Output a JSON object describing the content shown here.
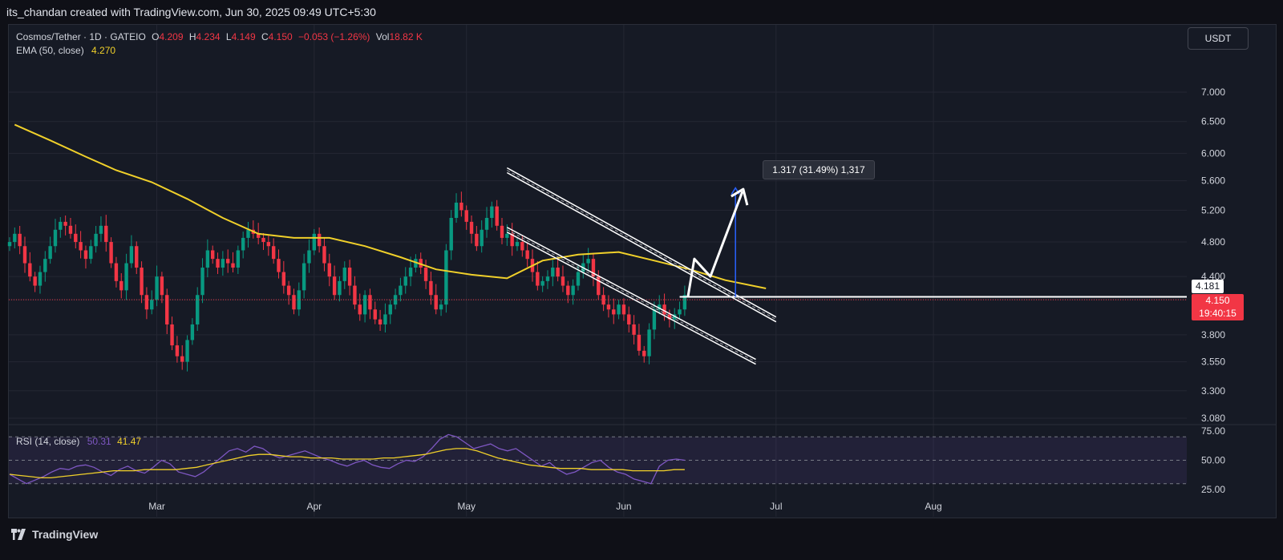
{
  "header": {
    "attribution": "its_chandan created with TradingView.com, Jun 30, 2025 09:49 UTC+5:30"
  },
  "legend": {
    "symbol": "Cosmos/Tether · 1D · GATEIO",
    "o_label": "O",
    "o_value": "4.209",
    "h_label": "H",
    "h_value": "4.234",
    "l_label": "L",
    "l_value": "4.149",
    "c_label": "C",
    "c_value": "4.150",
    "change": "−0.053 (−1.26%)",
    "vol_label": "Vol",
    "vol_value": "18.82 K",
    "ema_label": "EMA (50, close)",
    "ema_value": "4.270"
  },
  "currency": "USDT",
  "price_tags": {
    "ema_tag": "4.181",
    "last_price": "4.150",
    "countdown": "19:40:15"
  },
  "measure": {
    "label": "1.317 (31.49%) 1,317"
  },
  "rsi_legend": {
    "label": "RSI (14, close)",
    "value1": "50.31",
    "value2": "41.47"
  },
  "footer": {
    "brand": "TradingView"
  },
  "colors": {
    "up": "#089981",
    "down": "#f23645",
    "ema": "#f0d02a",
    "rsi": "#7e57c2",
    "background": "#161a25",
    "grid": "#242733"
  },
  "chart_data": [
    {
      "type": "candlestick",
      "title": "Cosmos/Tether · 1D · GATEIO",
      "x_ticks": [
        "Mar",
        "Apr",
        "May",
        "Jun",
        "Jul",
        "Aug"
      ],
      "y_ticks": [
        "3.080",
        "3.300",
        "3.550",
        "3.800",
        "4.150",
        "4.400",
        "4.800",
        "5.200",
        "5.600",
        "6.000",
        "6.500",
        "7.000"
      ],
      "y_scale": "log",
      "ylim": [
        2.95,
        7.6
      ],
      "grid": true,
      "series": [
        {
          "name": "EMA (50, close)",
          "color": "#f0d02a",
          "points": [
            [
              6.45,
              "Feb 2"
            ],
            [
              6.2,
              "Feb 9"
            ],
            [
              5.95,
              "Feb 16"
            ],
            [
              5.75,
              "Feb 22"
            ],
            [
              5.58,
              "Mar 1"
            ],
            [
              5.35,
              "Mar 8"
            ],
            [
              5.1,
              "Mar 15"
            ],
            [
              4.9,
              "Mar 22"
            ],
            [
              4.85,
              "Mar 29"
            ],
            [
              4.85,
              "Apr 5"
            ],
            [
              4.75,
              "Apr 12"
            ],
            [
              4.62,
              "Apr 19"
            ],
            [
              4.48,
              "Apr 26"
            ],
            [
              4.42,
              "May 3"
            ],
            [
              4.38,
              "May 10"
            ],
            [
              4.58,
              "May 17"
            ],
            [
              4.65,
              "May 24"
            ],
            [
              4.68,
              "Jun 1"
            ],
            [
              4.58,
              "Jun 8"
            ],
            [
              4.48,
              "Jun 15"
            ],
            [
              4.36,
              "Jun 22"
            ],
            [
              4.27,
              "Jun 30"
            ]
          ]
        },
        {
          "name": "Last price",
          "last": 4.15,
          "open": 4.209,
          "high": 4.234,
          "low": 4.149
        }
      ],
      "annotations": {
        "descending_channel": {
          "upper_start": [
            5.75,
            "May 10"
          ],
          "upper_end": [
            3.95,
            "Jul 2"
          ],
          "lower_start": [
            4.95,
            "May 10"
          ],
          "lower_end": [
            3.55,
            "Jun 28"
          ]
        },
        "measure_arrow": {
          "from": 4.18,
          "to": 5.5,
          "change": "1.317 (31.49%) 1,317"
        },
        "horizontal_level": 4.181,
        "projection": "breakout arrow upward"
      }
    },
    {
      "type": "line",
      "title": "RSI (14, close)",
      "y_ticks": [
        "25.00",
        "50.00",
        "75.00"
      ],
      "ylim": [
        20,
        80
      ],
      "bands": [
        70,
        50,
        30
      ],
      "series": [
        {
          "name": "RSI",
          "color": "#7e57c2",
          "values": [
            38,
            34,
            30,
            33,
            36,
            40,
            43,
            42,
            45,
            46,
            44,
            40,
            37,
            42,
            45,
            41,
            39,
            44,
            50,
            47,
            40,
            38,
            36,
            40,
            46,
            52,
            58,
            60,
            57,
            62,
            60,
            55,
            52,
            54,
            56,
            58,
            55,
            52,
            50,
            47,
            45,
            48,
            50,
            46,
            44,
            43,
            47,
            50,
            49,
            53,
            60,
            68,
            72,
            70,
            65,
            60,
            62,
            64,
            60,
            58,
            60,
            55,
            50,
            45,
            48,
            42,
            38,
            40,
            44,
            48,
            50,
            44,
            40,
            38,
            34,
            32,
            30,
            45,
            50,
            51,
            50
          ]
        },
        {
          "name": "RSI-based MA",
          "color": "#f0d02a",
          "values": [
            38,
            37,
            36,
            35,
            35,
            36,
            37,
            38,
            39,
            40,
            41,
            41,
            41,
            42,
            42,
            42,
            42,
            43,
            44,
            46,
            48,
            50,
            52,
            54,
            55,
            55,
            54,
            53,
            53,
            52,
            52,
            52,
            51,
            51,
            51,
            51,
            52,
            52,
            53,
            54,
            55,
            57,
            59,
            60,
            60,
            58,
            55,
            52,
            50,
            48,
            46,
            45,
            44,
            43,
            43,
            43,
            42,
            42,
            42,
            42,
            41,
            41,
            41,
            41,
            42,
            42
          ]
        }
      ]
    }
  ]
}
